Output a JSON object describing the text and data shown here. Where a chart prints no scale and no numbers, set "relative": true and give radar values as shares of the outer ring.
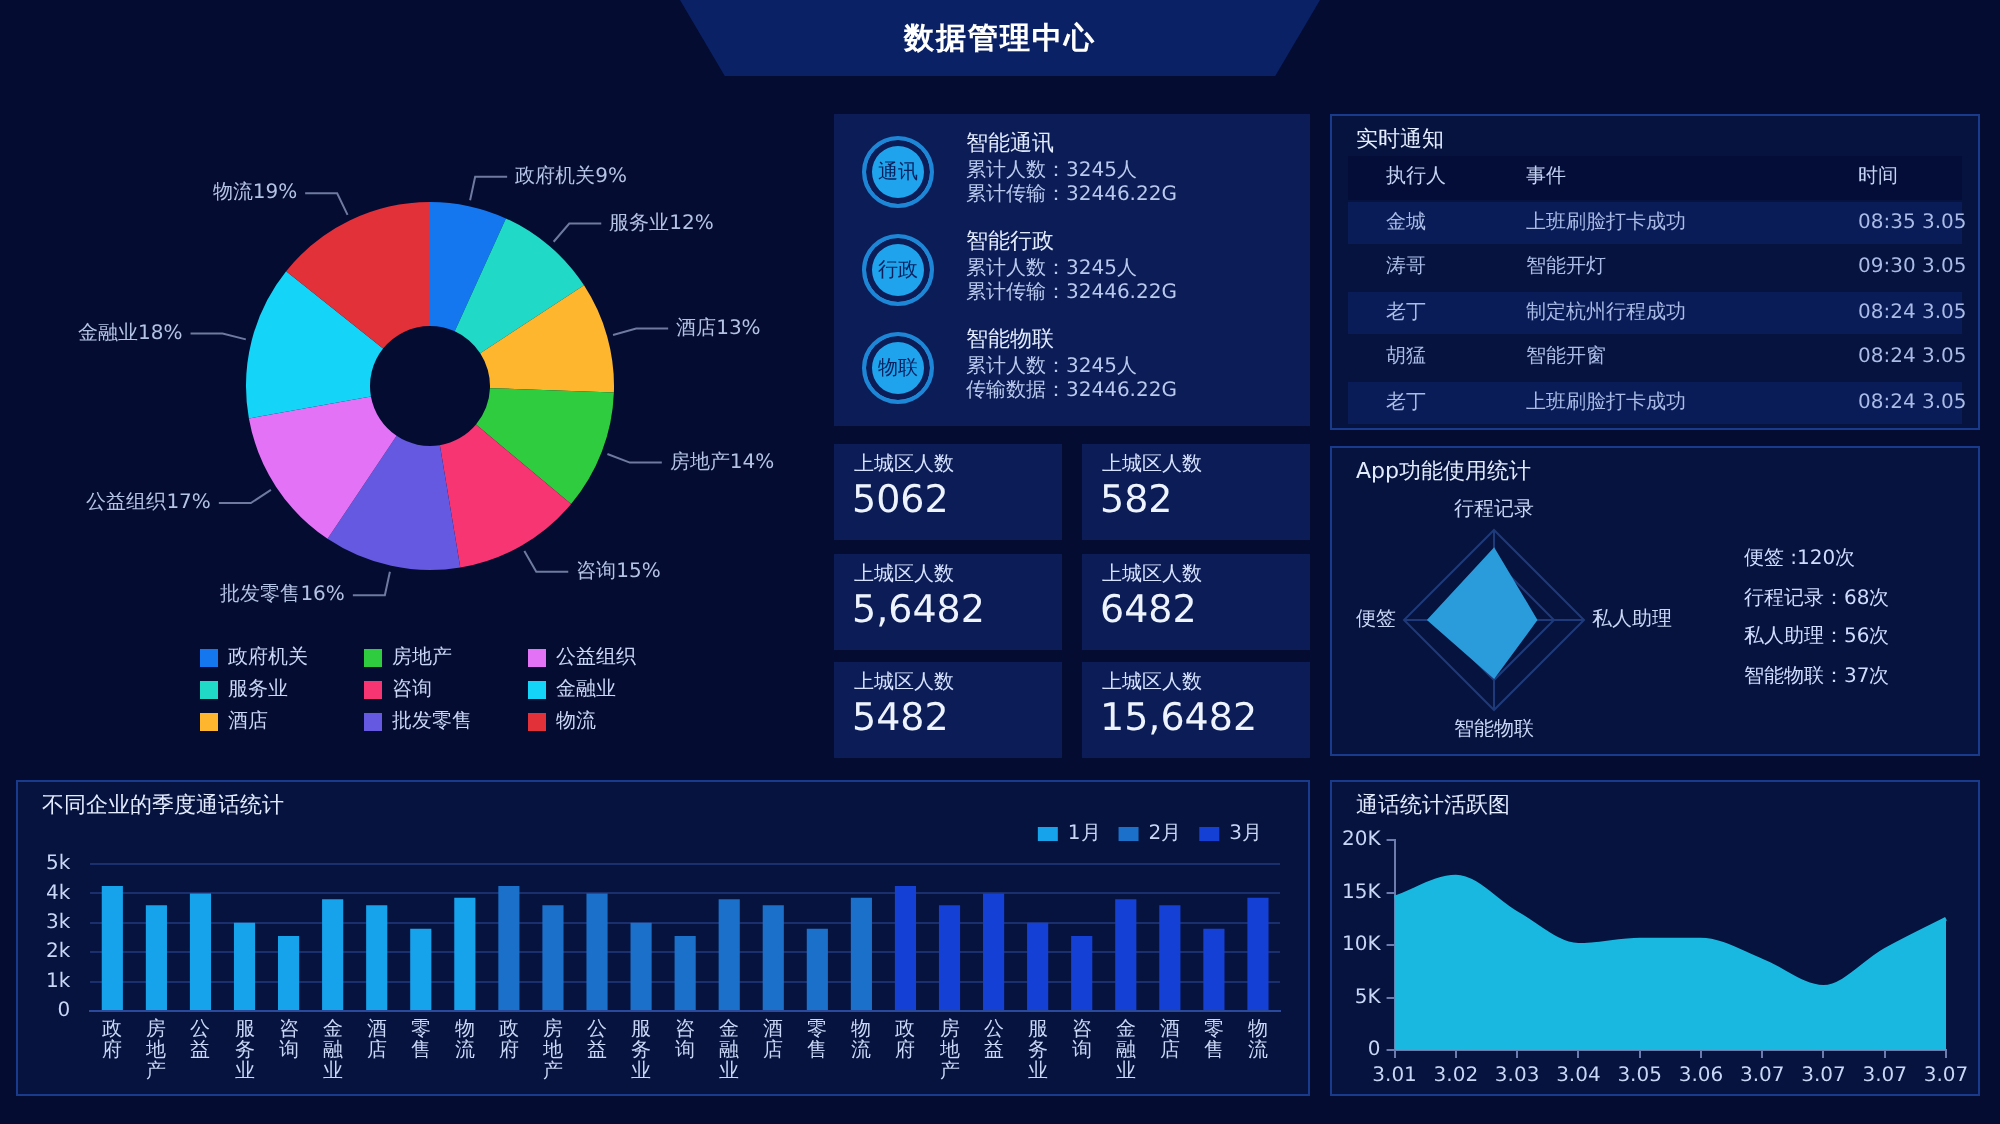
{
  "chart_data": [
    {
      "type": "other",
      "title": "数据管理中心"
    },
    {
      "type": "donut",
      "categories": [
        "政府机关",
        "服务业",
        "酒店",
        "房地产",
        "咨询",
        "批发零售",
        "公益组织",
        "金融业",
        "物流"
      ],
      "values": [
        9,
        12,
        13,
        14,
        15,
        16,
        17,
        18,
        19
      ],
      "value_labels": [
        "9%",
        "12%",
        "13%",
        "14%",
        "15%",
        "16%",
        "17%",
        "18%",
        "19%"
      ],
      "colors": [
        "#1577f0",
        "#20d9c6",
        "#ffb62f",
        "#2fcc3f",
        "#f73572",
        "#6459e0",
        "#e372f7",
        "#14d5f7",
        "#e3313a"
      ],
      "legend": "bottom"
    },
    {
      "type": "other",
      "annotations": [
        "通讯",
        "智能通讯",
        "累计人数：3245人",
        "累计传输：32446.22G",
        "行政",
        "智能行政",
        "累计人数：3245人",
        "累计传输：32446.22G",
        "物联",
        "智能物联",
        "累计人数：3245人",
        "传输数据：32446.22G"
      ]
    },
    {
      "type": "other",
      "annotations": [
        "上城区人数",
        "5062",
        "上城区人数",
        "582",
        "上城区人数",
        "5,6482",
        "上城区人数",
        "6482",
        "上城区人数",
        "5482",
        "上城区人数",
        "15,6482"
      ]
    },
    {
      "type": "other",
      "title": "实时通知",
      "annotations": [
        "执行人",
        "事件",
        "时间",
        "金城",
        "上班刷脸打卡成功",
        "08:35 3.05",
        "涛哥",
        "智能开灯",
        "09:30 3.05",
        "老丁",
        "制定杭州行程成功",
        "08:24 3.05",
        "胡猛",
        "智能开窗",
        "08:24 3.05",
        "老丁",
        "上班刷脸打卡成功",
        "08:24 3.05"
      ]
    },
    {
      "type": "radar",
      "title": "App功能使用统计",
      "categories": [
        "行程记录",
        "私人助理",
        "智能物联",
        "便签"
      ],
      "relative": true,
      "values": [
        0.79,
        0.47,
        0.64,
        0.73
      ],
      "color": "#2a9cdb",
      "grid": true,
      "marker": "none",
      "annotations": [
        "便签 :120次",
        "行程记录：68次",
        "私人助理：56次",
        "智能物联：37次"
      ]
    },
    {
      "type": "bar",
      "title": "不同企业的季度通话统计",
      "categories": [
        "政府",
        "房地产",
        "公益",
        "服务业",
        "咨询",
        "金融业",
        "酒店",
        "零售",
        "物流",
        "政府",
        "房地产",
        "公益",
        "服务业",
        "咨询",
        "金融业",
        "酒店",
        "零售",
        "物流",
        "政府",
        "房地产",
        "公益",
        "服务业",
        "咨询",
        "金融业",
        "酒店",
        "零售",
        "物流"
      ],
      "series": [
        {
          "name": "1月",
          "color": "#17a3ec",
          "values": [
            4250,
            3600,
            4000,
            3000,
            2550,
            3800,
            3600,
            2800,
            3850,
            null,
            null,
            null,
            null,
            null,
            null,
            null,
            null,
            null,
            null,
            null,
            null,
            null,
            null,
            null,
            null,
            null,
            null
          ]
        },
        {
          "name": "2月",
          "color": "#1b70c9",
          "values": [
            null,
            null,
            null,
            null,
            null,
            null,
            null,
            null,
            null,
            4250,
            3600,
            4000,
            3000,
            2550,
            3800,
            3600,
            2800,
            3850,
            null,
            null,
            null,
            null,
            null,
            null,
            null,
            null,
            null
          ]
        },
        {
          "name": "3月",
          "color": "#1540d6",
          "values": [
            null,
            null,
            null,
            null,
            null,
            null,
            null,
            null,
            null,
            null,
            null,
            null,
            null,
            null,
            null,
            null,
            null,
            null,
            4250,
            3600,
            4000,
            3000,
            2550,
            3800,
            3600,
            2800,
            3850
          ]
        }
      ],
      "ylim": [
        0,
        5000
      ],
      "yticks": [
        0,
        {
          "value": 1000,
          "label": "1k"
        },
        {
          "value": 2000,
          "label": "2k"
        },
        {
          "value": 3000,
          "label": "3k"
        },
        {
          "value": 4000,
          "label": "4k"
        },
        {
          "value": 5000,
          "label": "5k"
        }
      ],
      "grid": "y",
      "legend": "top right"
    },
    {
      "type": "area",
      "title": "通话统计活跃图",
      "categories": [
        "3.01",
        "3.02",
        "3.03",
        "3.04",
        "3.05",
        "3.06",
        "3.07",
        "3.07",
        "3.07",
        "3.07"
      ],
      "values": [
        14500,
        16500,
        13000,
        10000,
        10500,
        10500,
        8500,
        6000,
        9500,
        12500
      ],
      "color": "#19b8e0",
      "ylim": [
        0,
        20000
      ],
      "yticks": [
        0,
        {
          "value": 5000,
          "label": "5K"
        },
        {
          "value": 10000,
          "label": "10K"
        },
        {
          "value": 15000,
          "label": "15K"
        },
        {
          "value": 20000,
          "label": "20K"
        }
      ],
      "marker": "none"
    }
  ]
}
